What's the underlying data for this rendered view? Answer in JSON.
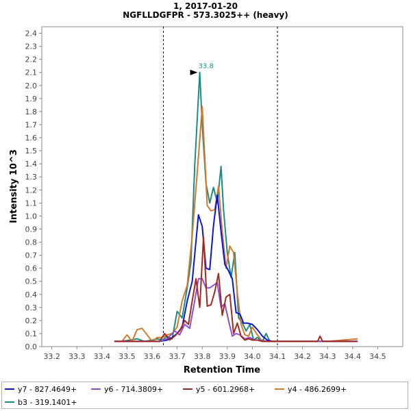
{
  "chart_data": {
    "type": "line",
    "title": "1, 2017-01-20",
    "subtitle": "NGFLLDGFPR - 573.3025++ (heavy)",
    "xlabel": "Retention Time",
    "ylabel": "Intensity  10^3",
    "xlim": [
      33.16,
      34.6
    ],
    "ylim": [
      0,
      2.45
    ],
    "x_ticks": [
      33.2,
      33.3,
      33.4,
      33.5,
      33.6,
      33.7,
      33.8,
      33.9,
      34.0,
      34.1,
      34.2,
      34.3,
      34.4,
      34.5
    ],
    "y_ticks": [
      0.0,
      0.1,
      0.2,
      0.3,
      0.4,
      0.5,
      0.6,
      0.7,
      0.8,
      0.9,
      1.0,
      1.1,
      1.2,
      1.3,
      1.4,
      1.5,
      1.6,
      1.7,
      1.8,
      1.9,
      2.0,
      2.1,
      2.2,
      2.3,
      2.4
    ],
    "integration_bounds": [
      33.645,
      34.1
    ],
    "peak_annotation": {
      "label": "33.8",
      "x": 33.79,
      "y": 2.1,
      "color": "#1c8b86"
    },
    "grid": false,
    "legend_position": "bottom",
    "series": [
      {
        "name": "b3 - 319.1401+",
        "color": "#1c8b86",
        "x": [
          33.45,
          33.48,
          33.51,
          33.54,
          33.57,
          33.6,
          33.62,
          33.64,
          33.66,
          33.68,
          33.7,
          33.72,
          33.74,
          33.755,
          33.77,
          33.79,
          33.8,
          33.815,
          33.83,
          33.845,
          33.86,
          33.875,
          33.885,
          33.9,
          33.915,
          33.93,
          33.945,
          33.96,
          33.975,
          33.99,
          34.005,
          34.02,
          34.04,
          34.055,
          34.07,
          34.09,
          34.11,
          34.2,
          34.3,
          34.42
        ],
        "y": [
          0.04,
          0.04,
          0.05,
          0.06,
          0.04,
          0.05,
          0.06,
          0.05,
          0.08,
          0.06,
          0.27,
          0.22,
          0.45,
          0.65,
          1.38,
          2.1,
          1.7,
          1.25,
          1.1,
          1.22,
          1.1,
          1.38,
          1.05,
          0.72,
          0.53,
          0.72,
          0.22,
          0.18,
          0.12,
          0.17,
          0.05,
          0.07,
          0.04,
          0.1,
          0.04,
          0.04,
          0.04,
          0.04,
          0.04,
          0.04
        ]
      },
      {
        "name": "y4 - 486.2699+",
        "color": "#d3792c",
        "x": [
          33.45,
          33.48,
          33.5,
          33.52,
          33.54,
          33.56,
          33.58,
          33.6,
          33.62,
          33.64,
          33.66,
          33.68,
          33.7,
          33.72,
          33.74,
          33.76,
          33.78,
          33.8,
          33.82,
          33.835,
          33.85,
          33.865,
          33.88,
          33.895,
          33.91,
          33.925,
          33.94,
          33.955,
          33.97,
          33.985,
          34.0,
          34.02,
          34.04,
          34.06,
          34.08,
          34.1,
          34.2,
          34.3,
          34.42
        ],
        "y": [
          0.04,
          0.04,
          0.09,
          0.04,
          0.13,
          0.14,
          0.09,
          0.04,
          0.07,
          0.07,
          0.09,
          0.1,
          0.15,
          0.35,
          0.47,
          0.85,
          1.33,
          1.84,
          1.08,
          1.04,
          1.05,
          1.23,
          0.88,
          0.6,
          0.77,
          0.72,
          0.41,
          0.17,
          0.09,
          0.08,
          0.15,
          0.09,
          0.04,
          0.04,
          0.04,
          0.04,
          0.04,
          0.04,
          0.06
        ]
      },
      {
        "name": "y7 - 827.4649+",
        "color": "#0a14d9",
        "x": [
          33.45,
          33.55,
          33.63,
          33.66,
          33.68,
          33.7,
          33.72,
          33.74,
          33.76,
          33.785,
          33.8,
          33.815,
          33.83,
          33.845,
          33.86,
          33.875,
          33.89,
          33.905,
          33.92,
          33.935,
          33.95,
          33.965,
          33.98,
          34.0,
          34.02,
          34.04,
          34.06,
          34.08,
          34.1,
          34.2,
          34.3,
          34.42
        ],
        "y": [
          0.04,
          0.04,
          0.04,
          0.05,
          0.07,
          0.1,
          0.15,
          0.35,
          0.5,
          1.01,
          0.92,
          0.6,
          0.59,
          0.93,
          1.16,
          0.88,
          0.63,
          0.58,
          0.52,
          0.26,
          0.25,
          0.18,
          0.18,
          0.17,
          0.13,
          0.08,
          0.05,
          0.04,
          0.04,
          0.04,
          0.04,
          0.04
        ]
      },
      {
        "name": "y6 - 714.3809+",
        "color": "#8a4fd4",
        "x": [
          33.45,
          33.55,
          33.63,
          33.66,
          33.69,
          33.71,
          33.73,
          33.75,
          33.77,
          33.785,
          33.8,
          33.815,
          33.83,
          33.845,
          33.86,
          33.875,
          33.89,
          33.905,
          33.92,
          33.935,
          33.95,
          33.97,
          33.99,
          34.01,
          34.03,
          34.06,
          34.1,
          34.2,
          34.3,
          34.42
        ],
        "y": [
          0.04,
          0.04,
          0.04,
          0.06,
          0.12,
          0.09,
          0.17,
          0.14,
          0.35,
          0.52,
          0.52,
          0.45,
          0.45,
          0.47,
          0.49,
          0.3,
          0.33,
          0.2,
          0.08,
          0.1,
          0.09,
          0.06,
          0.07,
          0.05,
          0.05,
          0.04,
          0.04,
          0.04,
          0.04,
          0.04
        ]
      },
      {
        "name": "y5 - 601.2968+",
        "color": "#a0281e",
        "x": [
          33.45,
          33.55,
          33.63,
          33.65,
          33.67,
          33.69,
          33.71,
          33.73,
          33.745,
          33.76,
          33.775,
          33.79,
          33.805,
          33.82,
          33.835,
          33.85,
          33.865,
          33.88,
          33.895,
          33.91,
          33.925,
          33.94,
          33.955,
          33.97,
          33.985,
          34.0,
          34.02,
          34.04,
          34.06,
          34.1,
          34.2,
          34.26,
          34.27,
          34.28,
          34.3,
          34.42
        ],
        "y": [
          0.04,
          0.04,
          0.04,
          0.1,
          0.05,
          0.08,
          0.12,
          0.2,
          0.17,
          0.35,
          0.52,
          0.3,
          0.84,
          0.31,
          0.32,
          0.42,
          0.56,
          0.24,
          0.38,
          0.4,
          0.1,
          0.18,
          0.08,
          0.05,
          0.06,
          0.05,
          0.05,
          0.04,
          0.04,
          0.04,
          0.04,
          0.04,
          0.08,
          0.04,
          0.04,
          0.04
        ]
      }
    ]
  }
}
